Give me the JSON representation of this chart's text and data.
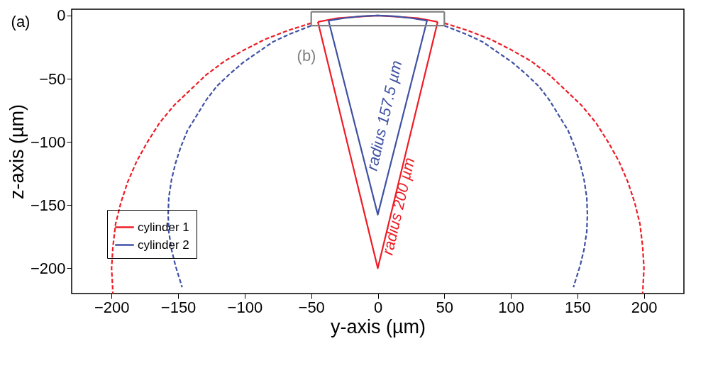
{
  "chart_data": {
    "type": "line",
    "xlabel": "y-axis (µm)",
    "ylabel": "z-axis (µm)",
    "xlim": [
      -230,
      230
    ],
    "ylim": [
      -220,
      5
    ],
    "xticks": [
      -200,
      -150,
      -100,
      -50,
      0,
      50,
      100,
      150,
      200
    ],
    "yticks": [
      -200,
      -150,
      -100,
      -50,
      0
    ],
    "grid": false,
    "legend": "bottom left",
    "marker": "none",
    "annotations": [
      "(a)",
      "(b)",
      "radius 157.5 µm",
      "radius 200 µm"
    ],
    "series": [
      {
        "name": "cylinder 1",
        "color": "#ee1c25",
        "line_style": "solid",
        "x": [
          -45,
          0,
          45
        ],
        "values": [
          -5,
          -200,
          -5
        ]
      },
      {
        "name": "cylinder 2",
        "color": "#3f51a3",
        "line_style": "solid",
        "x": [
          -37,
          0,
          37
        ],
        "values": [
          -4,
          -157.5,
          -4
        ]
      },
      {
        "color": "#ee1c25",
        "line_style": "solid",
        "x": [
          -45,
          -30,
          -15,
          0,
          15,
          30,
          45
        ],
        "values": [
          -5,
          -2,
          -1,
          0,
          -1,
          -2,
          -5
        ]
      },
      {
        "color": "#3f51a3",
        "line_style": "solid",
        "x": [
          -37,
          -25,
          -12,
          0,
          12,
          25,
          37
        ],
        "values": [
          -4,
          -2,
          -0.5,
          0,
          -0.5,
          -2,
          -4
        ]
      },
      {
        "color": "#ee1c25",
        "line_style": "dashed",
        "x": [
          -50,
          -68,
          -85,
          -100,
          -115,
          -129,
          -141,
          -153,
          -164,
          -173,
          -181,
          -188,
          -193,
          -197,
          -199,
          -200,
          -199
        ],
        "values": [
          -6,
          -12,
          -19,
          -27,
          -36,
          -47,
          -59,
          -71,
          -85,
          -100,
          -115,
          -132,
          -148,
          -165,
          -183,
          -200,
          -220
        ]
      },
      {
        "color": "#ee1c25",
        "line_style": "dashed",
        "x": [
          50,
          68,
          85,
          100,
          115,
          129,
          141,
          153,
          164,
          173,
          181,
          188,
          193,
          197,
          199,
          200,
          199
        ],
        "values": [
          -6,
          -12,
          -19,
          -27,
          -36,
          -47,
          -59,
          -71,
          -85,
          -100,
          -115,
          -132,
          -148,
          -165,
          -183,
          -200,
          -220
        ]
      },
      {
        "color": "#3f51a3",
        "line_style": "dashed",
        "x": [
          -50,
          -67,
          -79,
          -90,
          -101,
          -111,
          -121,
          -129,
          -136,
          -143,
          -148,
          -152,
          -155,
          -157,
          -157.5,
          -157,
          -155,
          -152,
          -147
        ],
        "values": [
          -8,
          -15,
          -21,
          -29,
          -37,
          -46,
          -56,
          -67,
          -79,
          -91,
          -104,
          -117,
          -130,
          -144,
          -157.5,
          -171,
          -185,
          -198,
          -215
        ]
      },
      {
        "color": "#3f51a3",
        "line_style": "dashed",
        "x": [
          50,
          67,
          79,
          90,
          101,
          111,
          121,
          129,
          136,
          143,
          148,
          152,
          155,
          157,
          157.5,
          157,
          155,
          152,
          147
        ],
        "values": [
          -8,
          -15,
          -21,
          -29,
          -37,
          -46,
          -56,
          -67,
          -79,
          -91,
          -104,
          -117,
          -130,
          -144,
          -157.5,
          -171,
          -185,
          -198,
          -215
        ]
      },
      {
        "color": "#808080",
        "line_style": "solid",
        "x": [
          -50,
          50
        ],
        "values": [
          3,
          3
        ]
      },
      {
        "color": "#808080",
        "line_style": "solid",
        "x": [
          -50,
          50
        ],
        "values": [
          -8,
          -8
        ]
      },
      {
        "color": "#808080",
        "line_style": "solid",
        "x": [
          -50,
          -50
        ],
        "values": [
          3,
          -8
        ]
      },
      {
        "color": "#808080",
        "line_style": "solid",
        "x": [
          50,
          50
        ],
        "values": [
          3,
          -8
        ]
      }
    ]
  }
}
